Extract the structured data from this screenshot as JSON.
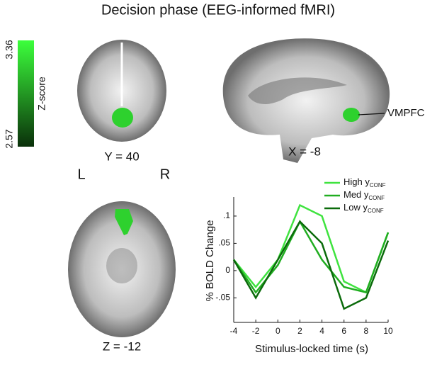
{
  "figure": {
    "title": "Decision phase (EEG-informed fMRI)",
    "colorbar": {
      "label": "Z-score",
      "max": "3.36",
      "min": "2.57"
    },
    "slices": {
      "coronal": "Y = 40",
      "sagittal": "X = -8",
      "axial": "Z = -12"
    },
    "sides": {
      "left": "L",
      "right": "R"
    },
    "region": "VMPFC"
  },
  "chart_data": {
    "type": "line",
    "x_label": "Stimulus-locked time (s)",
    "y_label": "% BOLD Change",
    "x": [
      -4,
      -2,
      0,
      2,
      4,
      6,
      8,
      10
    ],
    "series": [
      {
        "name": "High y",
        "subscript": "CONF",
        "color": "#3fe33f",
        "values": [
          0.02,
          -0.03,
          0.02,
          0.12,
          0.1,
          -0.02,
          -0.04,
          0.07
        ]
      },
      {
        "name": "Med y",
        "subscript": "CONF",
        "color": "#20ad20",
        "values": [
          0.02,
          -0.04,
          0.01,
          0.09,
          0.02,
          -0.03,
          -0.04,
          0.07
        ]
      },
      {
        "name": "Low y",
        "subscript": "CONF",
        "color": "#0b6b0b",
        "values": [
          0.02,
          -0.05,
          0.02,
          0.09,
          0.05,
          -0.07,
          -0.05,
          0.055
        ]
      }
    ],
    "xlim": [
      -4,
      10
    ],
    "xticks": [
      -4,
      -2,
      0,
      2,
      4,
      6,
      8,
      10
    ],
    "ylim": [
      -0.095,
      0.135
    ],
    "yticks": [
      {
        "value": -0.05,
        "label": "-.05"
      },
      0,
      {
        "value": 0.05,
        "label": ".05"
      },
      {
        "value": 0.1,
        "label": ".1"
      }
    ]
  }
}
